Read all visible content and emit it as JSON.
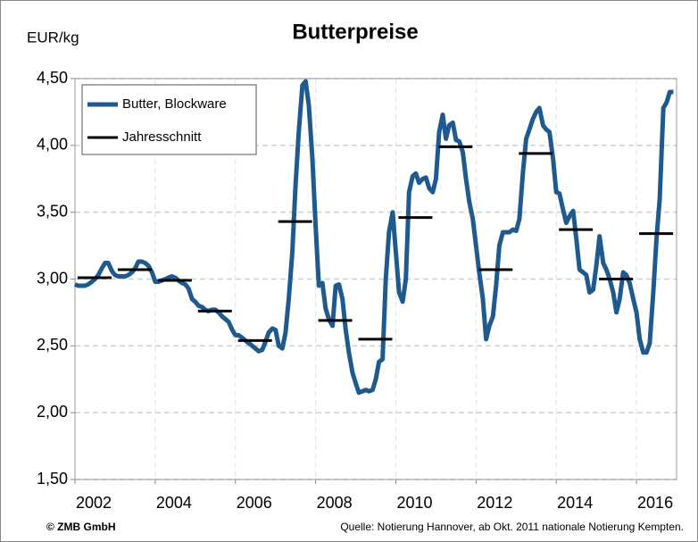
{
  "chart_data": {
    "type": "line",
    "title": "Butterpreise",
    "ylabel": "EUR/kg",
    "footer_left": "© ZMB GmbH",
    "footer_right": "Quelle: Notierung Hannover, ab Okt. 2011 nationale Notierung Kempten.",
    "xlim": [
      2002,
      2017
    ],
    "xticks": [
      2002,
      2004,
      2006,
      2008,
      2010,
      2012,
      2014,
      2016
    ],
    "ylim": [
      1.5,
      4.5
    ],
    "yticks": [
      {
        "value": 1.5,
        "label": "1,50"
      },
      {
        "value": 2.0,
        "label": "2,00"
      },
      {
        "value": 2.5,
        "label": "2,50"
      },
      {
        "value": 3.0,
        "label": "3,00"
      },
      {
        "value": 3.5,
        "label": "3,50"
      },
      {
        "value": 4.0,
        "label": "4,00"
      },
      {
        "value": 4.5,
        "label": "4,50"
      }
    ],
    "grid": true,
    "legend": "upper left",
    "series": [
      {
        "name": "Butter, Blockware",
        "color": "#1f5a8f",
        "x": [
          2002.0,
          2002.08,
          2002.17,
          2002.25,
          2002.33,
          2002.42,
          2002.5,
          2002.58,
          2002.67,
          2002.75,
          2002.83,
          2002.92,
          2003.0,
          2003.08,
          2003.17,
          2003.25,
          2003.33,
          2003.42,
          2003.5,
          2003.58,
          2003.67,
          2003.75,
          2003.83,
          2003.92,
          2004.0,
          2004.08,
          2004.17,
          2004.25,
          2004.33,
          2004.42,
          2004.5,
          2004.58,
          2004.67,
          2004.75,
          2004.83,
          2004.92,
          2005.0,
          2005.08,
          2005.17,
          2005.25,
          2005.33,
          2005.42,
          2005.5,
          2005.58,
          2005.67,
          2005.75,
          2005.83,
          2005.92,
          2006.0,
          2006.08,
          2006.17,
          2006.25,
          2006.33,
          2006.42,
          2006.5,
          2006.58,
          2006.67,
          2006.75,
          2006.83,
          2006.92,
          2007.0,
          2007.08,
          2007.17,
          2007.25,
          2007.33,
          2007.42,
          2007.5,
          2007.58,
          2007.67,
          2007.75,
          2007.83,
          2007.92,
          2008.0,
          2008.08,
          2008.17,
          2008.25,
          2008.33,
          2008.42,
          2008.5,
          2008.58,
          2008.67,
          2008.75,
          2008.83,
          2008.92,
          2009.0,
          2009.08,
          2009.17,
          2009.25,
          2009.33,
          2009.42,
          2009.5,
          2009.58,
          2009.67,
          2009.75,
          2009.83,
          2009.92,
          2010.0,
          2010.08,
          2010.17,
          2010.25,
          2010.33,
          2010.42,
          2010.5,
          2010.58,
          2010.67,
          2010.75,
          2010.83,
          2010.92,
          2011.0,
          2011.08,
          2011.17,
          2011.25,
          2011.33,
          2011.42,
          2011.5,
          2011.58,
          2011.67,
          2011.75,
          2011.83,
          2011.92,
          2012.0,
          2012.08,
          2012.17,
          2012.25,
          2012.33,
          2012.42,
          2012.5,
          2012.58,
          2012.67,
          2012.75,
          2012.83,
          2012.92,
          2013.0,
          2013.08,
          2013.17,
          2013.25,
          2013.33,
          2013.42,
          2013.5,
          2013.58,
          2013.67,
          2013.75,
          2013.83,
          2013.92,
          2014.0,
          2014.08,
          2014.17,
          2014.25,
          2014.33,
          2014.42,
          2014.5,
          2014.58,
          2014.67,
          2014.75,
          2014.83,
          2014.92,
          2015.0,
          2015.08,
          2015.17,
          2015.25,
          2015.33,
          2015.42,
          2015.5,
          2015.58,
          2015.67,
          2015.75,
          2015.83,
          2015.92,
          2016.0,
          2016.08,
          2016.17,
          2016.25,
          2016.33,
          2016.42,
          2016.5,
          2016.58,
          2016.67,
          2016.75,
          2016.83,
          2016.92
        ],
        "values": [
          2.96,
          2.95,
          2.95,
          2.95,
          2.96,
          2.98,
          3.0,
          3.03,
          3.08,
          3.12,
          3.12,
          3.06,
          3.03,
          3.02,
          3.02,
          3.02,
          3.03,
          3.05,
          3.08,
          3.13,
          3.13,
          3.12,
          3.1,
          3.05,
          2.98,
          2.98,
          2.99,
          3.0,
          3.01,
          3.02,
          3.01,
          2.99,
          2.97,
          2.96,
          2.93,
          2.85,
          2.83,
          2.8,
          2.79,
          2.77,
          2.76,
          2.77,
          2.77,
          2.75,
          2.72,
          2.7,
          2.68,
          2.62,
          2.58,
          2.58,
          2.56,
          2.54,
          2.52,
          2.5,
          2.48,
          2.46,
          2.47,
          2.53,
          2.6,
          2.63,
          2.62,
          2.5,
          2.48,
          2.6,
          2.85,
          3.2,
          3.7,
          4.1,
          4.45,
          4.48,
          4.3,
          3.9,
          3.4,
          2.95,
          2.97,
          2.78,
          2.7,
          2.65,
          2.95,
          2.96,
          2.85,
          2.62,
          2.45,
          2.3,
          2.22,
          2.15,
          2.16,
          2.17,
          2.16,
          2.17,
          2.25,
          2.38,
          2.4,
          3.0,
          3.35,
          3.5,
          3.2,
          2.9,
          2.83,
          3.0,
          3.65,
          3.77,
          3.79,
          3.72,
          3.75,
          3.76,
          3.68,
          3.65,
          3.75,
          4.1,
          4.23,
          4.05,
          4.15,
          4.17,
          4.04,
          4.03,
          3.95,
          3.75,
          3.58,
          3.45,
          3.25,
          3.05,
          2.85,
          2.55,
          2.65,
          2.72,
          2.95,
          3.25,
          3.35,
          3.35,
          3.35,
          3.37,
          3.36,
          3.45,
          3.8,
          4.05,
          4.12,
          4.2,
          4.25,
          4.28,
          4.15,
          4.12,
          4.1,
          3.9,
          3.65,
          3.64,
          3.52,
          3.42,
          3.47,
          3.51,
          3.3,
          3.07,
          3.05,
          3.03,
          2.9,
          2.92,
          3.1,
          3.32,
          3.12,
          3.07,
          3.0,
          2.9,
          2.75,
          2.85,
          3.05,
          3.03,
          2.97,
          2.85,
          2.75,
          2.55,
          2.45,
          2.45,
          2.52,
          2.9,
          3.3,
          3.6,
          4.28,
          4.32,
          4.4,
          4.4
        ]
      },
      {
        "name": "Jahresschnitt",
        "color": "#000000",
        "style": "annual",
        "x": [
          2002,
          2003,
          2004,
          2005,
          2006,
          2007,
          2008,
          2009,
          2010,
          2011,
          2012,
          2013,
          2014,
          2015,
          2016
        ],
        "values": [
          3.01,
          3.07,
          2.99,
          2.76,
          2.54,
          3.43,
          2.69,
          2.55,
          3.46,
          3.99,
          3.07,
          3.94,
          3.37,
          3.0,
          3.34
        ]
      }
    ]
  }
}
